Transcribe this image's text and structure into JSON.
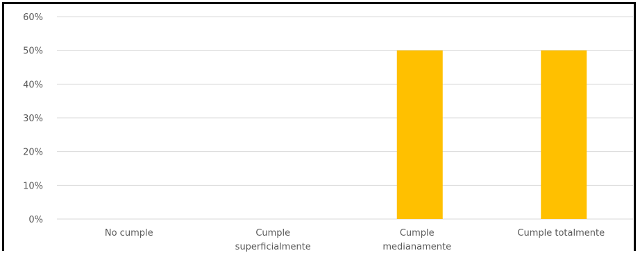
{
  "chart_data": {
    "type": "bar",
    "categories": [
      "No cumple",
      "Cumple superficialmente",
      "Cumple medianamente",
      "Cumple totalmente"
    ],
    "category_lines": [
      [
        "No cumple"
      ],
      [
        "Cumple",
        "superficialmente"
      ],
      [
        "Cumple",
        "medianamente"
      ],
      [
        "Cumple totalmente"
      ]
    ],
    "values": [
      0,
      0,
      0.5,
      0.5
    ],
    "ylim": [
      0,
      0.6
    ],
    "yticks": [
      0,
      0.1,
      0.2,
      0.3,
      0.4,
      0.5,
      0.6
    ],
    "ytick_labels": [
      "0%",
      "10%",
      "20%",
      "30%",
      "40%",
      "50%",
      "60%"
    ],
    "grid": true,
    "bar_color": "#FFC000",
    "grid_color": "#D9D9D9",
    "title": "",
    "xlabel": "",
    "ylabel": ""
  }
}
